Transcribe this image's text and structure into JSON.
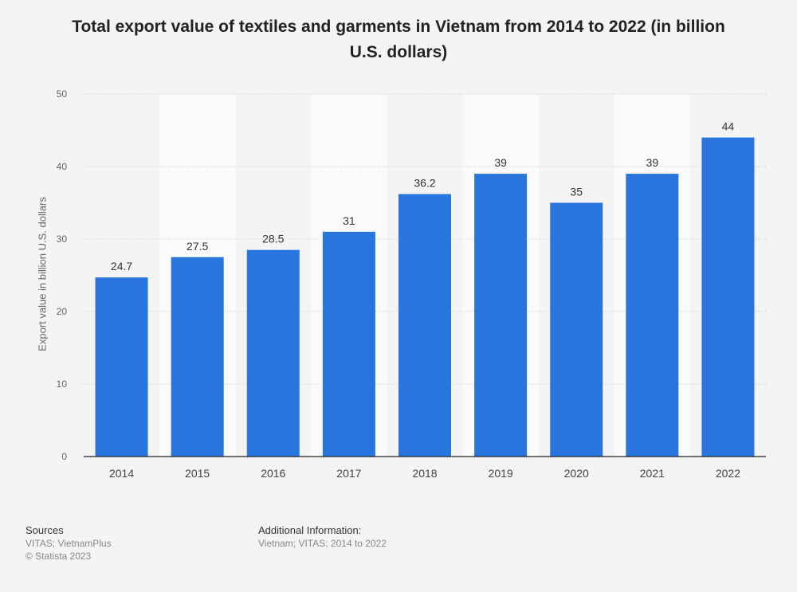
{
  "chart_data": {
    "type": "bar",
    "title": "Total export value of textiles and garments in Vietnam from 2014 to 2022 (in billion U.S. dollars)",
    "xlabel": "",
    "ylabel": "Export value in billion U.S. dollars",
    "categories": [
      "2014",
      "2015",
      "2016",
      "2017",
      "2018",
      "2019",
      "2020",
      "2021",
      "2022"
    ],
    "values": [
      24.7,
      27.5,
      28.5,
      31,
      36.2,
      39,
      35,
      39,
      44
    ],
    "data_labels": [
      "24.7",
      "27.5",
      "28.5",
      "31",
      "36.2",
      "39",
      "35",
      "39",
      "44"
    ],
    "ylim": [
      0,
      50
    ],
    "yticks": [
      0,
      10,
      20,
      30,
      40,
      50
    ],
    "grid": true,
    "bar_color": "#2876dd"
  },
  "footer": {
    "sources_heading": "Sources",
    "sources_text": "VITAS; VietnamPlus",
    "copyright": "© Statista 2023",
    "additional_heading": "Additional Information:",
    "additional_text": "Vietnam; VITAS; 2014 to 2022"
  }
}
